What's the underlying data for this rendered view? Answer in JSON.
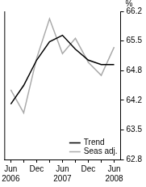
{
  "chart_data": {
    "type": "line",
    "ylabel": "%",
    "categories": [
      "Jun 2006",
      null,
      "Dec",
      null,
      "Jun 2007",
      null,
      "Dec",
      null,
      "Jun 2008"
    ],
    "series": [
      {
        "name": "Trend",
        "color": "#000000",
        "values": [
          64.07,
          64.5,
          65.08,
          65.5,
          65.65,
          65.33,
          65.08,
          64.98,
          64.98
        ]
      },
      {
        "name": "Seas adj.",
        "color": "#aaaaaa",
        "values": [
          64.4,
          63.87,
          65.12,
          66.03,
          65.23,
          65.58,
          65.03,
          64.73,
          65.38
        ]
      }
    ],
    "ylim": [
      62.8,
      66.2
    ],
    "yticks": [
      62.8,
      {
        "value": 63.48,
        "label": "63.5"
      },
      {
        "value": 64.16,
        "label": "64.2"
      },
      {
        "value": 64.84,
        "label": "64.8"
      },
      {
        "value": 65.52,
        "label": "65.5"
      },
      66.2
    ],
    "grid": false,
    "legend": "lower right"
  }
}
